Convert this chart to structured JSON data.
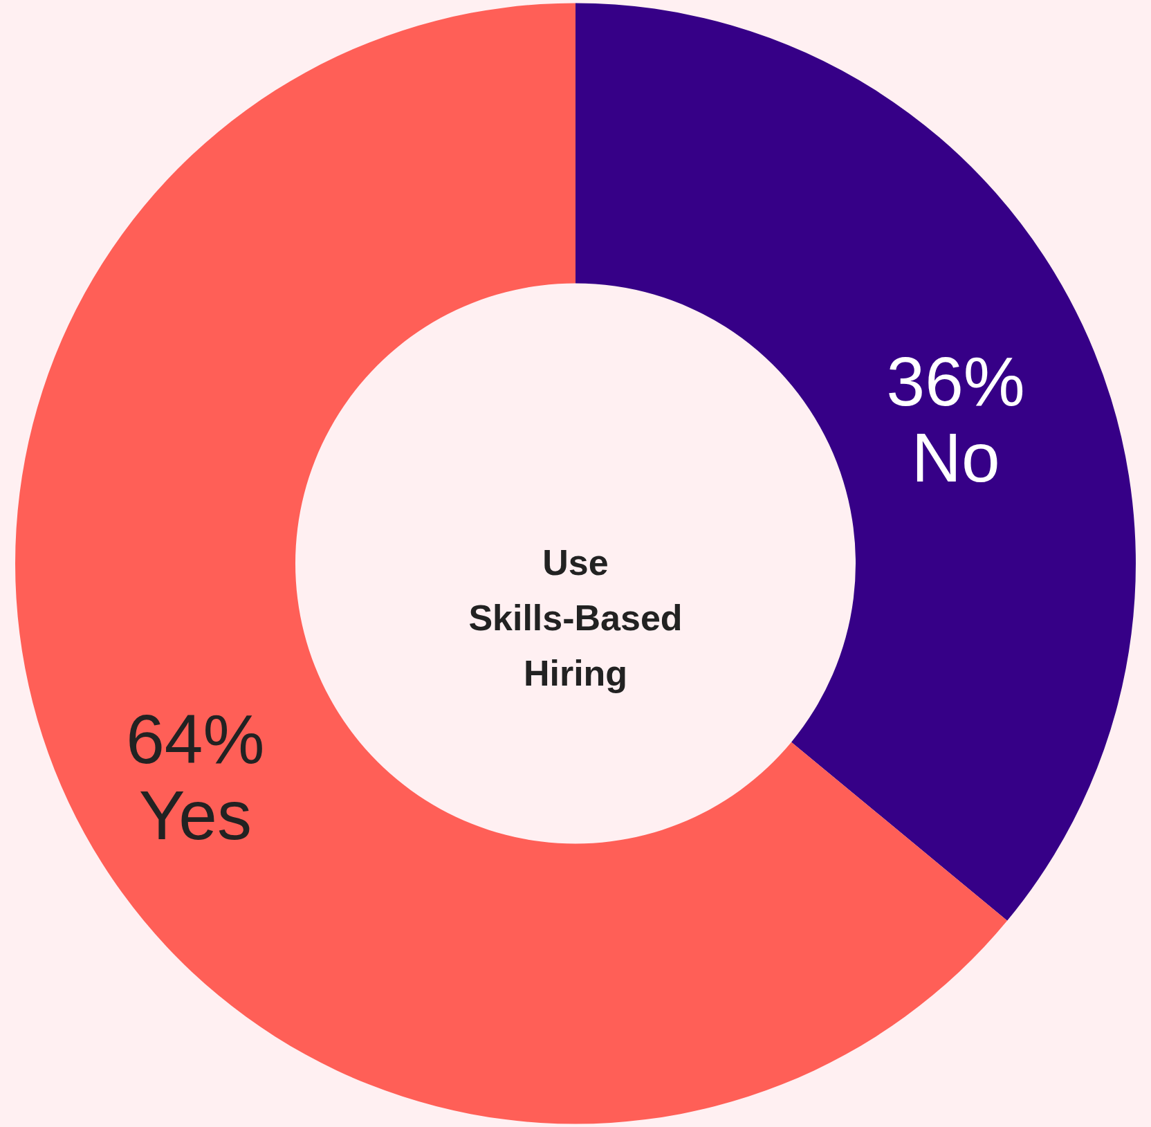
{
  "chart_data": {
    "type": "donut",
    "title": "Use Skills-Based Hiring",
    "categories": [
      "No",
      "Yes"
    ],
    "values": [
      36,
      64
    ],
    "value_labels": [
      "36%",
      "64%"
    ],
    "colors": [
      "#360087",
      "#ff5f57"
    ]
  }
}
